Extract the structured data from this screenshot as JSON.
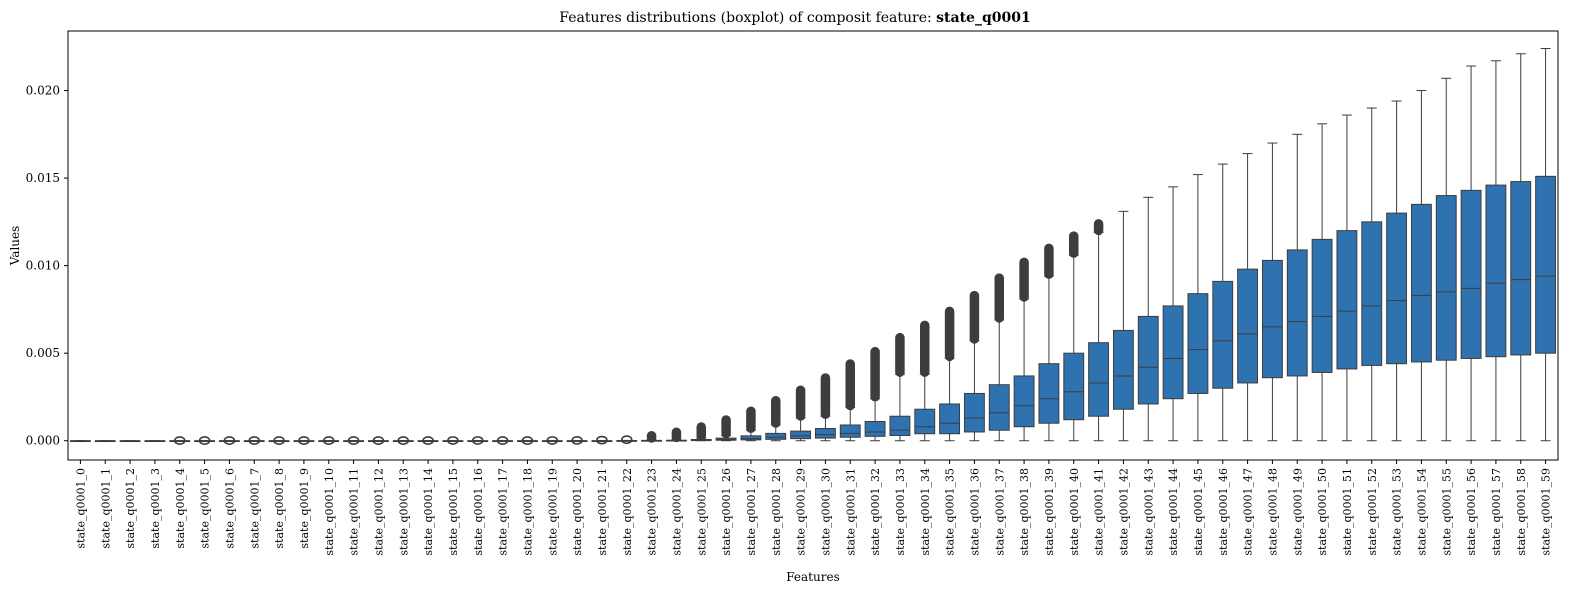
{
  "chart_data": {
    "type": "boxplot",
    "title_prefix": "Features distributions (boxplot) of composit feature: ",
    "title_feature": "state_q0001",
    "xlabel": "Features",
    "ylabel": "Values",
    "ylim": [
      -0.0011,
      0.0234
    ],
    "yticks": [
      0.0,
      0.005,
      0.01,
      0.015,
      0.02
    ],
    "ytick_labels": [
      "0.000",
      "0.005",
      "0.010",
      "0.015",
      "0.020"
    ],
    "box_color": "#2f72b0",
    "line_color": "#3d3d3d",
    "categories": [
      "state_q0001_0",
      "state_q0001_1",
      "state_q0001_2",
      "state_q0001_3",
      "state_q0001_4",
      "state_q0001_5",
      "state_q0001_6",
      "state_q0001_7",
      "state_q0001_8",
      "state_q0001_9",
      "state_q0001_10",
      "state_q0001_11",
      "state_q0001_12",
      "state_q0001_13",
      "state_q0001_14",
      "state_q0001_15",
      "state_q0001_16",
      "state_q0001_17",
      "state_q0001_18",
      "state_q0001_19",
      "state_q0001_20",
      "state_q0001_21",
      "state_q0001_22",
      "state_q0001_23",
      "state_q0001_24",
      "state_q0001_25",
      "state_q0001_26",
      "state_q0001_27",
      "state_q0001_28",
      "state_q0001_29",
      "state_q0001_30",
      "state_q0001_31",
      "state_q0001_32",
      "state_q0001_33",
      "state_q0001_34",
      "state_q0001_35",
      "state_q0001_36",
      "state_q0001_37",
      "state_q0001_38",
      "state_q0001_39",
      "state_q0001_40",
      "state_q0001_41",
      "state_q0001_42",
      "state_q0001_43",
      "state_q0001_44",
      "state_q0001_45",
      "state_q0001_46",
      "state_q0001_47",
      "state_q0001_48",
      "state_q0001_49",
      "state_q0001_50",
      "state_q0001_51",
      "state_q0001_52",
      "state_q0001_53",
      "state_q0001_54",
      "state_q0001_55",
      "state_q0001_56",
      "state_q0001_57",
      "state_q0001_58",
      "state_q0001_59"
    ],
    "boxes": [
      {
        "min": 0,
        "q1": 0,
        "median": 0,
        "q3": 0,
        "max": 0,
        "out_max": 0
      },
      {
        "min": 0,
        "q1": 0,
        "median": 0,
        "q3": 0,
        "max": 0,
        "out_max": 0
      },
      {
        "min": 0,
        "q1": 0,
        "median": 0,
        "q3": 0,
        "max": 0,
        "out_max": 0
      },
      {
        "min": 0,
        "q1": 0,
        "median": 0,
        "q3": 0,
        "max": 0,
        "out_max": 0
      },
      {
        "min": 0,
        "q1": 0,
        "median": 0,
        "q3": 0,
        "max": 0,
        "out_max": 2e-05
      },
      {
        "min": 0,
        "q1": 0,
        "median": 0,
        "q3": 0,
        "max": 0,
        "out_max": 2e-05
      },
      {
        "min": 0,
        "q1": 0,
        "median": 0,
        "q3": 0,
        "max": 0,
        "out_max": 2e-05
      },
      {
        "min": 0,
        "q1": 0,
        "median": 0,
        "q3": 0,
        "max": 0,
        "out_max": 2e-05
      },
      {
        "min": 0,
        "q1": 0,
        "median": 0,
        "q3": 0,
        "max": 0,
        "out_max": 2e-05
      },
      {
        "min": 0,
        "q1": 0,
        "median": 0,
        "q3": 0,
        "max": 0,
        "out_max": 2e-05
      },
      {
        "min": 0,
        "q1": 0,
        "median": 0,
        "q3": 0,
        "max": 0,
        "out_max": 2e-05
      },
      {
        "min": 0,
        "q1": 0,
        "median": 0,
        "q3": 0,
        "max": 0,
        "out_max": 2e-05
      },
      {
        "min": 0,
        "q1": 0,
        "median": 0,
        "q3": 0,
        "max": 0,
        "out_max": 2e-05
      },
      {
        "min": 0,
        "q1": 0,
        "median": 0,
        "q3": 0,
        "max": 0,
        "out_max": 2e-05
      },
      {
        "min": 0,
        "q1": 0,
        "median": 0,
        "q3": 0,
        "max": 0,
        "out_max": 2e-05
      },
      {
        "min": 0,
        "q1": 0,
        "median": 0,
        "q3": 0,
        "max": 0,
        "out_max": 3e-05
      },
      {
        "min": 0,
        "q1": 0,
        "median": 0,
        "q3": 0,
        "max": 0,
        "out_max": 3e-05
      },
      {
        "min": 0,
        "q1": 0,
        "median": 0,
        "q3": 0,
        "max": 0,
        "out_max": 2e-05
      },
      {
        "min": 0,
        "q1": 0,
        "median": 0,
        "q3": 0,
        "max": 0,
        "out_max": 2e-05
      },
      {
        "min": 0,
        "q1": 0,
        "median": 0,
        "q3": 0,
        "max": 0,
        "out_max": 3e-05
      },
      {
        "min": 0,
        "q1": 0,
        "median": 0,
        "q3": 0,
        "max": 0,
        "out_max": 4e-05
      },
      {
        "min": 0,
        "q1": 0,
        "median": 0,
        "q3": 0,
        "max": 1e-05,
        "out_max": 6e-05
      },
      {
        "min": 0,
        "q1": 0,
        "median": 0,
        "q3": 1e-05,
        "max": 2e-05,
        "out_max": 0.0001
      },
      {
        "min": 0,
        "q1": 0,
        "median": 0,
        "q3": 2e-05,
        "max": 5e-05,
        "out_max": 0.0004
      },
      {
        "min": 0,
        "q1": 0,
        "median": 1e-05,
        "q3": 3e-05,
        "max": 8e-05,
        "out_max": 0.0006
      },
      {
        "min": 0,
        "q1": 1e-05,
        "median": 3e-05,
        "q3": 7e-05,
        "max": 0.00015,
        "out_max": 0.0009
      },
      {
        "min": 0,
        "q1": 3e-05,
        "median": 7e-05,
        "q3": 0.00015,
        "max": 0.0003,
        "out_max": 0.0013
      },
      {
        "min": 0,
        "q1": 5e-05,
        "median": 0.00012,
        "q3": 0.00028,
        "max": 0.0006,
        "out_max": 0.0018
      },
      {
        "min": 0,
        "q1": 8e-05,
        "median": 0.0002,
        "q3": 0.00042,
        "max": 0.0009,
        "out_max": 0.0024
      },
      {
        "min": 0,
        "q1": 0.00012,
        "median": 0.00028,
        "q3": 0.00055,
        "max": 0.0013,
        "out_max": 0.003
      },
      {
        "min": 0,
        "q1": 0.00015,
        "median": 0.00035,
        "q3": 0.0007,
        "max": 0.0014,
        "out_max": 0.0037
      },
      {
        "min": 0,
        "q1": 0.0002,
        "median": 0.00042,
        "q3": 0.0009,
        "max": 0.0019,
        "out_max": 0.0045
      },
      {
        "min": 0,
        "q1": 0.00025,
        "median": 0.0005,
        "q3": 0.0011,
        "max": 0.0024,
        "out_max": 0.0052
      },
      {
        "min": 0,
        "q1": 0.0003,
        "median": 0.0006,
        "q3": 0.0014,
        "max": 0.0038,
        "out_max": 0.006
      },
      {
        "min": 0,
        "q1": 0.0004,
        "median": 0.0008,
        "q3": 0.0018,
        "max": 0.0038,
        "out_max": 0.0067
      },
      {
        "min": 0,
        "q1": 0.0004,
        "median": 0.001,
        "q3": 0.0021,
        "max": 0.0047,
        "out_max": 0.0075
      },
      {
        "min": 0,
        "q1": 0.0005,
        "median": 0.0013,
        "q3": 0.0027,
        "max": 0.0057,
        "out_max": 0.0084
      },
      {
        "min": 0,
        "q1": 0.0006,
        "median": 0.0016,
        "q3": 0.0032,
        "max": 0.0069,
        "out_max": 0.0094
      },
      {
        "min": 0,
        "q1": 0.0008,
        "median": 0.002,
        "q3": 0.0037,
        "max": 0.0081,
        "out_max": 0.0103
      },
      {
        "min": 0,
        "q1": 0.001,
        "median": 0.0024,
        "q3": 0.0044,
        "max": 0.0094,
        "out_max": 0.0111
      },
      {
        "min": 0,
        "q1": 0.0012,
        "median": 0.0028,
        "q3": 0.005,
        "max": 0.0106,
        "out_max": 0.0118
      },
      {
        "min": 0,
        "q1": 0.0014,
        "median": 0.0033,
        "q3": 0.0056,
        "max": 0.0119,
        "out_max": 0.0125
      },
      {
        "min": 0,
        "q1": 0.0018,
        "median": 0.0037,
        "q3": 0.0063,
        "max": 0.0131
      },
      {
        "min": 0,
        "q1": 0.0021,
        "median": 0.0042,
        "q3": 0.0071,
        "max": 0.0139
      },
      {
        "min": 0,
        "q1": 0.0024,
        "median": 0.0047,
        "q3": 0.0077,
        "max": 0.0145
      },
      {
        "min": 0,
        "q1": 0.0027,
        "median": 0.0052,
        "q3": 0.0084,
        "max": 0.0152
      },
      {
        "min": 0,
        "q1": 0.003,
        "median": 0.0057,
        "q3": 0.0091,
        "max": 0.0158
      },
      {
        "min": 0,
        "q1": 0.0033,
        "median": 0.0061,
        "q3": 0.0098,
        "max": 0.0164
      },
      {
        "min": 0,
        "q1": 0.0036,
        "median": 0.0065,
        "q3": 0.0103,
        "max": 0.017
      },
      {
        "min": 0,
        "q1": 0.0037,
        "median": 0.0068,
        "q3": 0.0109,
        "max": 0.0175
      },
      {
        "min": 0,
        "q1": 0.0039,
        "median": 0.0071,
        "q3": 0.0115,
        "max": 0.0181
      },
      {
        "min": 0,
        "q1": 0.0041,
        "median": 0.0074,
        "q3": 0.012,
        "max": 0.0186
      },
      {
        "min": 0,
        "q1": 0.0043,
        "median": 0.0077,
        "q3": 0.0125,
        "max": 0.019
      },
      {
        "min": 0,
        "q1": 0.0044,
        "median": 0.008,
        "q3": 0.013,
        "max": 0.0194
      },
      {
        "min": 0,
        "q1": 0.0045,
        "median": 0.0083,
        "q3": 0.0135,
        "max": 0.02
      },
      {
        "min": 0,
        "q1": 0.0046,
        "median": 0.0085,
        "q3": 0.014,
        "max": 0.0207
      },
      {
        "min": 0,
        "q1": 0.0047,
        "median": 0.0087,
        "q3": 0.0143,
        "max": 0.0214
      },
      {
        "min": 0,
        "q1": 0.0048,
        "median": 0.009,
        "q3": 0.0146,
        "max": 0.0217
      },
      {
        "min": 0,
        "q1": 0.0049,
        "median": 0.0092,
        "q3": 0.0148,
        "max": 0.0221
      },
      {
        "min": 0,
        "q1": 0.005,
        "median": 0.0094,
        "q3": 0.0151,
        "max": 0.0224
      }
    ],
    "grid": false,
    "legend": "none"
  }
}
